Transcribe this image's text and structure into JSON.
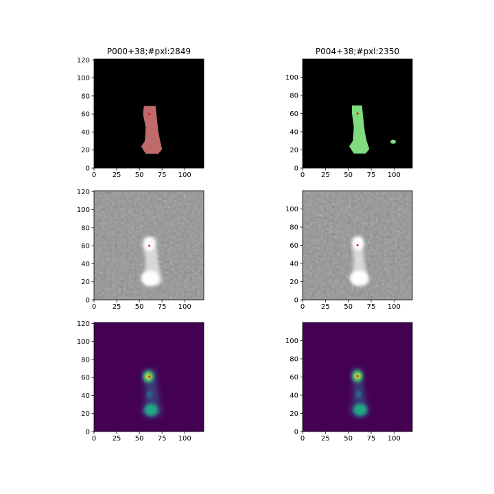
{
  "chart_data": [
    {
      "type": "image",
      "style": "mask",
      "color": "#bf6b6b",
      "title": "P000+38;#pxl:2849",
      "xlim": [
        0,
        121
      ],
      "ylim": [
        0,
        121
      ],
      "xticks": [
        0,
        25,
        50,
        75,
        100
      ],
      "yticks": [
        0,
        20,
        40,
        60,
        80,
        100,
        120
      ],
      "marker": {
        "x": 61,
        "y": 60,
        "color": "#ff0000"
      }
    },
    {
      "type": "image",
      "style": "mask",
      "color": "#7fdc7f",
      "title": "P004+38;#pxl:2350",
      "xlim": [
        0,
        120
      ],
      "ylim": [
        0,
        120
      ],
      "xticks": [
        0,
        25,
        50,
        75,
        100
      ],
      "yticks": [
        0,
        20,
        40,
        60,
        80,
        100
      ],
      "marker": {
        "x": 60,
        "y": 60,
        "color": "#ff0000"
      }
    },
    {
      "type": "image",
      "style": "gray",
      "xlim": [
        0,
        121
      ],
      "ylim": [
        0,
        121
      ],
      "xticks": [
        0,
        25,
        50,
        75,
        100
      ],
      "yticks": [
        0,
        20,
        40,
        60,
        80,
        100,
        120
      ],
      "marker": {
        "x": 61,
        "y": 60,
        "color": "#ff0000"
      }
    },
    {
      "type": "image",
      "style": "gray",
      "xlim": [
        0,
        120
      ],
      "ylim": [
        0,
        120
      ],
      "xticks": [
        0,
        25,
        50,
        75,
        100
      ],
      "yticks": [
        0,
        20,
        40,
        60,
        80,
        100
      ],
      "marker": {
        "x": 60,
        "y": 60,
        "color": "#ff0000"
      }
    },
    {
      "type": "image",
      "style": "viridis",
      "xlim": [
        0,
        121
      ],
      "ylim": [
        0,
        121
      ],
      "xticks": [
        0,
        25,
        50,
        75,
        100
      ],
      "yticks": [
        0,
        20,
        40,
        60,
        80,
        100,
        120
      ],
      "marker": {
        "x": 61,
        "y": 61,
        "color": "#ff0000"
      }
    },
    {
      "type": "image",
      "style": "viridis",
      "xlim": [
        0,
        120
      ],
      "ylim": [
        0,
        120
      ],
      "xticks": [
        0,
        25,
        50,
        75,
        100
      ],
      "yticks": [
        0,
        20,
        40,
        60,
        80,
        100
      ],
      "marker": {
        "x": 60,
        "y": 61,
        "color": "#ff0000"
      }
    }
  ]
}
